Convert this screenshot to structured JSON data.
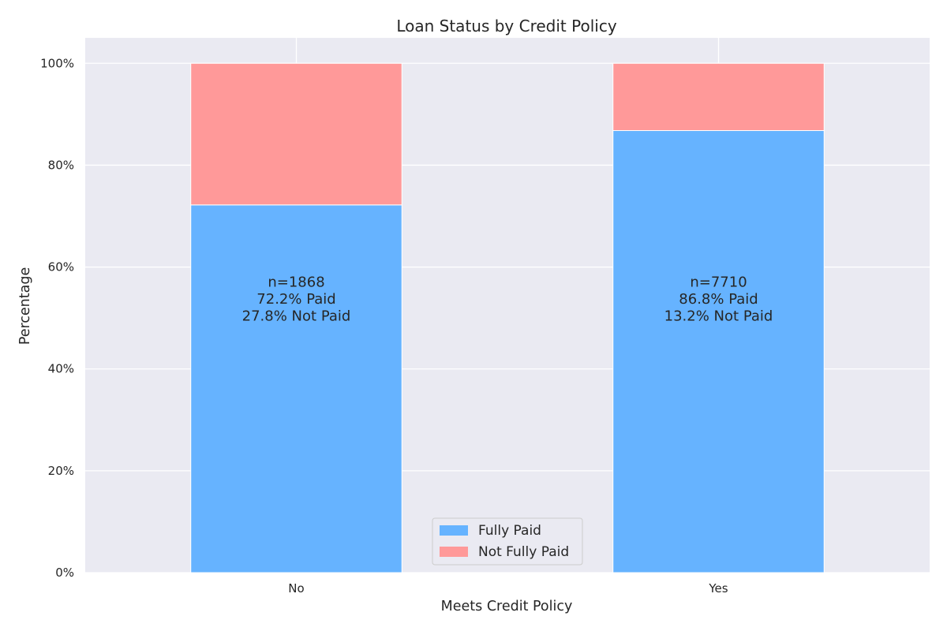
{
  "chart_data": {
    "type": "bar",
    "stacked": true,
    "title": "Loan Status by Credit Policy",
    "xlabel": "Meets Credit Policy",
    "ylabel": "Percentage",
    "categories": [
      "No",
      "Yes"
    ],
    "series": [
      {
        "name": "Fully Paid",
        "values": [
          72.2,
          86.8
        ],
        "color": "#66b3ff"
      },
      {
        "name": "Not Fully Paid",
        "values": [
          27.8,
          13.2
        ],
        "color": "#ff9999"
      }
    ],
    "ylim": [
      0,
      105
    ],
    "yticks": [
      0,
      20,
      40,
      60,
      80,
      100
    ],
    "ytick_labels": [
      "0%",
      "20%",
      "40%",
      "60%",
      "80%",
      "100%"
    ],
    "annotations": [
      {
        "category": "No",
        "lines": [
          "n=1868",
          "72.2% Paid",
          "27.8% Not Paid"
        ]
      },
      {
        "category": "Yes",
        "lines": [
          "n=7710",
          "86.8% Paid",
          "13.2% Not Paid"
        ]
      }
    ],
    "grid": true,
    "legend_position": "bottom-center",
    "background": "#eaeaf2"
  }
}
